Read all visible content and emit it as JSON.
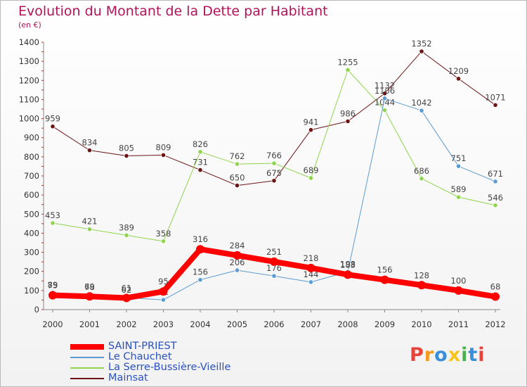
{
  "header": {
    "title": "Evolution du Montant de la Dette par Habitant",
    "subtitle": "(en €)"
  },
  "logo": {
    "text": "Proxiti",
    "letters": [
      {
        "ch": "P",
        "color": "#e8433a"
      },
      {
        "ch": "r",
        "color": "#f29a1f"
      },
      {
        "ch": "o",
        "color": "#3a8fd8"
      },
      {
        "ch": "x",
        "color": "#f5c518"
      },
      {
        "ch": "i",
        "color": "#4caf50"
      },
      {
        "ch": "t",
        "color": "#3a8fd8"
      },
      {
        "ch": "i",
        "color": "#e8433a"
      }
    ]
  },
  "chart_data": {
    "type": "line",
    "title": "Evolution du Montant de la Dette par Habitant",
    "subtitle": "(en €)",
    "x": [
      "2000",
      "2001",
      "2002",
      "2003",
      "2004",
      "2005",
      "2006",
      "2007",
      "2008",
      "2009",
      "2010",
      "2011",
      "2012"
    ],
    "ylim": [
      0,
      1400
    ],
    "yticks": [
      0,
      100,
      200,
      300,
      400,
      500,
      600,
      700,
      800,
      900,
      1000,
      1100,
      1200,
      1300,
      1400
    ],
    "grid": false,
    "legend_position": "bottom-left",
    "series": [
      {
        "name": "Mainsat",
        "color": "#6b1414",
        "width": 1,
        "values": [
          959,
          834,
          805,
          809,
          731,
          650,
          675,
          941,
          986,
          1132,
          1352,
          1209,
          1071
        ]
      },
      {
        "name": "La Serre-Bussière-Vieille",
        "color": "#8fd44f",
        "width": 1,
        "values": [
          453,
          421,
          389,
          358,
          826,
          762,
          766,
          689,
          1255,
          1044,
          686,
          589,
          546
        ]
      },
      {
        "name": "Le Chauchet",
        "color": "#5c9bd1",
        "width": 1,
        "values": [
          89,
          78,
          62,
          51,
          156,
          206,
          176,
          144,
          198,
          1106,
          1042,
          751,
          671
        ]
      },
      {
        "name": "SAINT-PRIEST",
        "color": "#ff0000",
        "width": 8,
        "values": [
          75,
          69,
          61,
          95,
          316,
          284,
          251,
          218,
          183,
          156,
          128,
          100,
          68
        ]
      }
    ],
    "legend_order": [
      "SAINT-PRIEST",
      "Le Chauchet",
      "La Serre-Bussière-Vieille",
      "Mainsat"
    ]
  }
}
